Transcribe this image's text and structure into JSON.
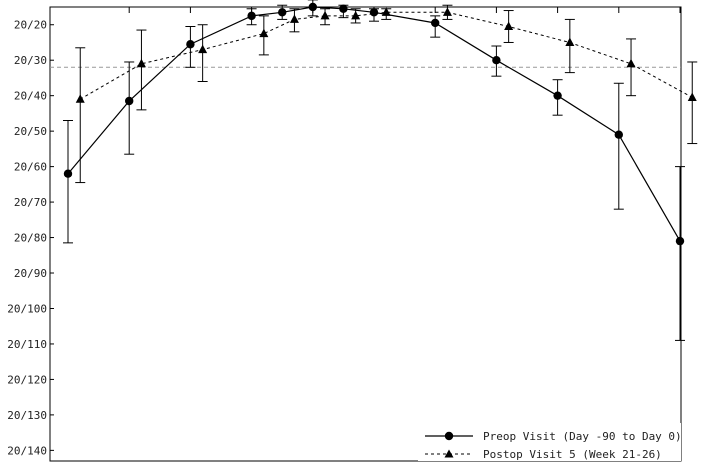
{
  "chart_data": {
    "type": "line",
    "title": "",
    "xlabel": "",
    "ylabel": "",
    "y_tick_labels": [
      "20/20",
      "20/30",
      "20/40",
      "20/50",
      "20/60",
      "20/70",
      "20/80",
      "20/90",
      "20/100",
      "20/110",
      "20/120",
      "20/130",
      "20/140"
    ],
    "y_tick_values": [
      20,
      30,
      40,
      50,
      60,
      70,
      80,
      90,
      100,
      110,
      120,
      130,
      140
    ],
    "ylim": [
      15,
      143
    ],
    "y_inverted": true,
    "xlim": [
      0,
      11
    ],
    "x_major_ticks": [
      1,
      2,
      3,
      4,
      5,
      6,
      7,
      8,
      9,
      10,
      11
    ],
    "reference_line": {
      "y": 32,
      "style": "dashed"
    },
    "legend_position": "bottom-right",
    "series": [
      {
        "name": "Preop Visit (Day -90 to Day 0)",
        "line_style": "solid",
        "marker": "circle",
        "x": [
          0.0,
          1.0,
          2.0,
          3.0,
          3.5,
          4.0,
          4.5,
          5.0,
          6.0,
          7.0,
          8.0,
          9.0,
          10.0
        ],
        "y": [
          62,
          41.5,
          25.5,
          17.5,
          16.5,
          15,
          15.5,
          16.5,
          19.5,
          30,
          40,
          51,
          81
        ],
        "err_low": [
          47,
          30.5,
          20.5,
          15.5,
          14.5,
          13,
          14.5,
          15.5,
          17.5,
          26,
          35.5,
          36.5,
          60
        ],
        "err_high": [
          81.5,
          56.5,
          32,
          20,
          18.5,
          17.5,
          18,
          19,
          23.5,
          34.5,
          45.5,
          72,
          109
        ]
      },
      {
        "name": "Postop Visit 5 (Week 21-26)",
        "line_style": "dashed",
        "marker": "triangle",
        "x": [
          0.2,
          1.2,
          2.2,
          3.2,
          3.7,
          4.2,
          4.7,
          5.2,
          6.2,
          7.2,
          8.2,
          9.2,
          10.2
        ],
        "y": [
          41,
          31,
          27,
          22.5,
          18.5,
          17.5,
          17.5,
          16.5,
          16.5,
          20.5,
          25,
          31,
          40.5
        ],
        "err_low": [
          26.5,
          21.5,
          20,
          17.5,
          15.5,
          15.5,
          15.5,
          15.5,
          14.5,
          16,
          18.5,
          24,
          30.5
        ],
        "err_high": [
          64.5,
          44,
          36,
          28.5,
          22,
          20,
          19.5,
          18.5,
          18.5,
          25,
          33.5,
          40,
          53.5
        ]
      }
    ]
  }
}
